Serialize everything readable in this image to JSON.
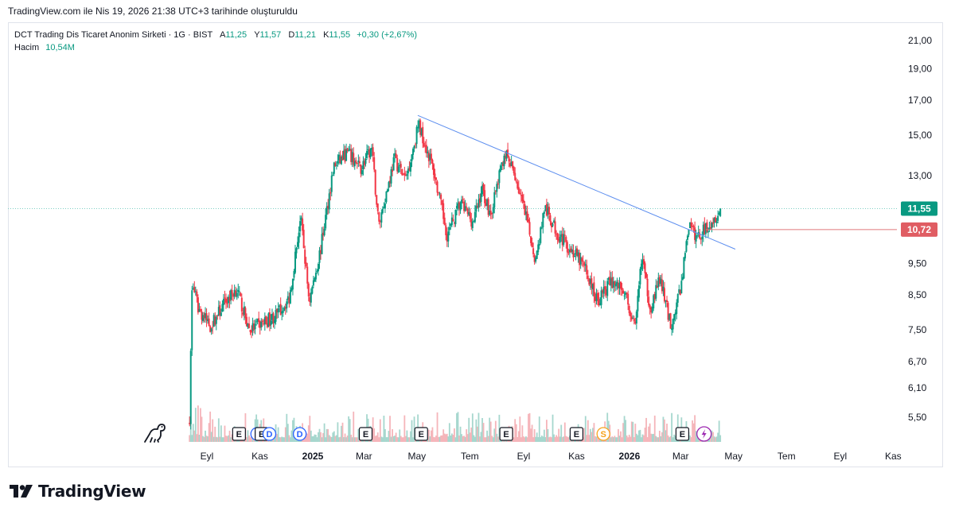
{
  "header": {
    "snapshot_note": "TradingView.com ile Nis 19, 2026 21:38 UTC+3 tarihinde oluşturuldu"
  },
  "legend": {
    "symbol_line": "DCT Trading Dis Ticaret Anonim Sirketi · 1G · BIST",
    "open_label": "A",
    "open_value": "11,25",
    "high_label": "Y",
    "high_value": "11,57",
    "low_label": "D",
    "low_value": "11,21",
    "close_label": "K",
    "close_value": "11,55",
    "change": "+0,30 (+2,67%)",
    "volume_label": "Hacim",
    "volume_value": "10,54M"
  },
  "footer": {
    "brand": "TradingView"
  },
  "colors": {
    "up": "#089981",
    "down": "#f23645",
    "up_volume": "#a6d7ce",
    "down_volume": "#f5b5ba",
    "trendline": "#5b8def",
    "horizontal_line": "#e0787b",
    "last_price_line": "#7fcfc4",
    "price_badge_bg": "#089981",
    "price_badge_red": "#e05d63"
  },
  "chart_data": {
    "type": "candlestick",
    "y_scale": "log",
    "y_ticks": [
      "21,00",
      "19,00",
      "17,00",
      "15,00",
      "13,00",
      "11,55",
      "10,72",
      "9,50",
      "8,50",
      "7,50",
      "6,70",
      "6,10",
      "5,50"
    ],
    "y_tick_values": [
      21.0,
      19.0,
      17.0,
      15.0,
      13.0,
      11.55,
      10.72,
      9.5,
      8.5,
      7.5,
      6.7,
      6.1,
      5.5
    ],
    "y_range": [
      5.05,
      22.3
    ],
    "x_ticks": [
      {
        "label": "Eyl",
        "bold": false
      },
      {
        "label": "Kas",
        "bold": false
      },
      {
        "label": "2025",
        "bold": true
      },
      {
        "label": "Mar",
        "bold": false
      },
      {
        "label": "May",
        "bold": false
      },
      {
        "label": "Tem",
        "bold": false
      },
      {
        "label": "Eyl",
        "bold": false
      },
      {
        "label": "Kas",
        "bold": false
      },
      {
        "label": "2026",
        "bold": true
      },
      {
        "label": "Mar",
        "bold": false
      },
      {
        "label": "May",
        "bold": false
      },
      {
        "label": "Tem",
        "bold": false
      },
      {
        "label": "Eyl",
        "bold": false
      },
      {
        "label": "Kas",
        "bold": false
      }
    ],
    "last_price": 11.55,
    "last_price_label": "11,55",
    "horizontal_level": 10.72,
    "horizontal_level_label": "10,72",
    "volume_badge": "10,54M",
    "trendline": {
      "start": {
        "date": "2025-05-02",
        "price": 16.1
      },
      "end": {
        "date": "2026-05-03",
        "price": 10.0
      }
    },
    "price_path": [
      [
        "2024-08-12",
        5.5
      ],
      [
        "2024-08-15",
        8.9
      ],
      [
        "2024-08-22",
        8.1
      ],
      [
        "2024-09-05",
        7.6
      ],
      [
        "2024-09-20",
        8.2
      ],
      [
        "2024-10-05",
        8.7
      ],
      [
        "2024-10-20",
        7.5
      ],
      [
        "2024-11-05",
        7.7
      ],
      [
        "2024-11-20",
        7.9
      ],
      [
        "2024-12-05",
        8.4
      ],
      [
        "2024-12-18",
        11.2
      ],
      [
        "2024-12-28",
        8.3
      ],
      [
        "2025-01-10",
        10.0
      ],
      [
        "2025-01-25",
        13.4
      ],
      [
        "2025-02-10",
        14.1
      ],
      [
        "2025-02-25",
        13.3
      ],
      [
        "2025-03-10",
        14.3
      ],
      [
        "2025-03-18",
        10.9
      ],
      [
        "2025-04-05",
        13.8
      ],
      [
        "2025-04-18",
        12.8
      ],
      [
        "2025-05-03",
        15.6
      ],
      [
        "2025-05-20",
        13.3
      ],
      [
        "2025-06-05",
        10.5
      ],
      [
        "2025-06-20",
        11.8
      ],
      [
        "2025-07-05",
        11.0
      ],
      [
        "2025-07-15",
        12.4
      ],
      [
        "2025-07-25",
        11.3
      ],
      [
        "2025-08-10",
        14.1
      ],
      [
        "2025-08-22",
        13.0
      ],
      [
        "2025-09-05",
        11.0
      ],
      [
        "2025-09-15",
        9.6
      ],
      [
        "2025-09-25",
        11.6
      ],
      [
        "2025-10-10",
        10.6
      ],
      [
        "2025-10-25",
        10.0
      ],
      [
        "2025-11-10",
        9.4
      ],
      [
        "2025-11-25",
        8.3
      ],
      [
        "2025-12-10",
        8.9
      ],
      [
        "2025-12-25",
        8.7
      ],
      [
        "2026-01-08",
        7.5
      ],
      [
        "2026-01-15",
        9.8
      ],
      [
        "2026-01-25",
        8.1
      ],
      [
        "2026-02-05",
        9.0
      ],
      [
        "2026-02-18",
        7.6
      ],
      [
        "2026-03-01",
        8.7
      ],
      [
        "2026-03-10",
        10.9
      ],
      [
        "2026-03-20",
        10.4
      ],
      [
        "2026-04-17",
        11.55
      ]
    ],
    "events": [
      {
        "date": "2024-10-08",
        "type": "E"
      },
      {
        "date": "2024-10-29",
        "type": "D"
      },
      {
        "date": "2024-11-03",
        "type": "E"
      },
      {
        "date": "2024-11-12",
        "type": "D"
      },
      {
        "date": "2024-12-17",
        "type": "D"
      },
      {
        "date": "2025-03-03",
        "type": "E"
      },
      {
        "date": "2025-05-06",
        "type": "E"
      },
      {
        "date": "2025-08-12",
        "type": "E"
      },
      {
        "date": "2025-11-01",
        "type": "E"
      },
      {
        "date": "2025-12-02",
        "type": "S"
      },
      {
        "date": "2026-03-03",
        "type": "E"
      },
      {
        "date": "2026-03-28",
        "type": "L"
      }
    ]
  }
}
